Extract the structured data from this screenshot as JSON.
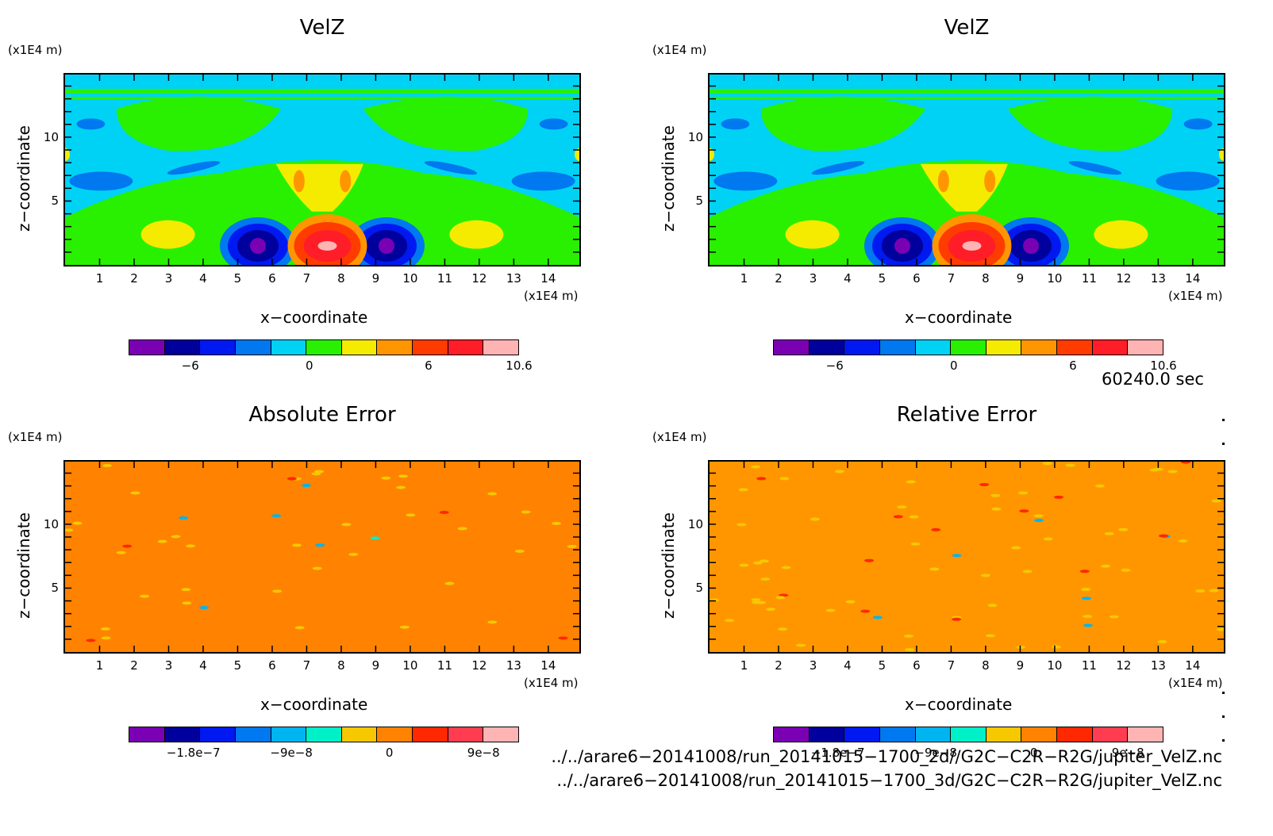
{
  "panels": [
    {
      "id": "velz-2d",
      "title": "VelZ",
      "y_unit": "(x1E4 m)",
      "x_unit": "(x1E4 m)",
      "xlabel": "x−coordinate",
      "ylabel": "z−coordinate",
      "x_ticks": [
        "1",
        "2",
        "3",
        "4",
        "5",
        "6",
        "7",
        "8",
        "9",
        "10",
        "11",
        "12",
        "13",
        "14"
      ],
      "y_ticks": [
        "10",
        "5"
      ],
      "colorbar_ticks": [
        "−6",
        "0",
        "6",
        "10.6"
      ]
    },
    {
      "id": "velz-3d",
      "title": "VelZ",
      "y_unit": "(x1E4 m)",
      "x_unit": "(x1E4 m)",
      "xlabel": "x−coordinate",
      "ylabel": "z−coordinate",
      "x_ticks": [
        "1",
        "2",
        "3",
        "4",
        "5",
        "6",
        "7",
        "8",
        "9",
        "10",
        "11",
        "12",
        "13",
        "14"
      ],
      "y_ticks": [
        "10",
        "5"
      ],
      "colorbar_ticks": [
        "−6",
        "0",
        "6",
        "10.6"
      ]
    },
    {
      "id": "abs-error",
      "title": "Absolute Error",
      "y_unit": "(x1E4 m)",
      "x_unit": "(x1E4 m)",
      "xlabel": "x−coordinate",
      "ylabel": "z−coordinate",
      "x_ticks": [
        "1",
        "2",
        "3",
        "4",
        "5",
        "6",
        "7",
        "8",
        "9",
        "10",
        "11",
        "12",
        "13",
        "14"
      ],
      "y_ticks": [
        "10",
        "5"
      ],
      "colorbar_ticks": [
        "−1.8e−7",
        "−9e−8",
        "0",
        "9e−8"
      ]
    },
    {
      "id": "rel-error",
      "title": "Relative Error",
      "y_unit": "(x1E4 m)",
      "x_unit": "(x1E4 m)",
      "xlabel": "x−coordinate",
      "ylabel": "z−coordinate",
      "x_ticks": [
        "1",
        "2",
        "3",
        "4",
        "5",
        "6",
        "7",
        "8",
        "9",
        "10",
        "11",
        "12",
        "13",
        "14"
      ],
      "y_ticks": [
        "10",
        "5"
      ],
      "colorbar_ticks": [
        "−1.8e−7",
        "−9e−8",
        "0",
        "9e−8"
      ]
    }
  ],
  "timestamp": "60240.0 sec",
  "file_paths": [
    "../../arare6−20141008/run_20141015−1700_2d//G2C−C2R−R2G/jupiter_VelZ.nc",
    "../../arare6−20141008/run_20141015−1700_3d/G2C−C2R−R2G/jupiter_VelZ.nc"
  ],
  "colors": {
    "velz_levels": [
      "#7a00b4",
      "#00009c",
      "#0019f0",
      "#0078f0",
      "#00d2f5",
      "#28f000",
      "#f5eb00",
      "#ff9600",
      "#ff3c00",
      "#ff1e28",
      "#ffb4b4"
    ],
    "error_levels": [
      "#7a00b4",
      "#00009c",
      "#0019f0",
      "#0078f0",
      "#00b4f0",
      "#00f0c8",
      "#f5c800",
      "#ff8200",
      "#ff2800",
      "#ff3c50",
      "#ffb4b4"
    ],
    "abs_field": "#ff8200",
    "rel_field": "#ff9600"
  },
  "chart_data": [
    {
      "type": "heatmap",
      "title": "VelZ",
      "xlabel": "x−coordinate",
      "ylabel": "z−coordinate",
      "x_unit": "(x1E4 m)",
      "y_unit": "(x1E4 m)",
      "xlim": [
        0,
        14.9
      ],
      "ylim": [
        0,
        14.9
      ],
      "colorbar_ticks": [
        -6,
        0,
        6,
        10.6
      ],
      "features": [
        {
          "kind": "max",
          "x": 7.7,
          "z": 1.5,
          "value": 10.6
        },
        {
          "kind": "min",
          "x": 5.6,
          "z": 1.5,
          "value": -7
        },
        {
          "kind": "min",
          "x": 9.6,
          "z": 1.5,
          "value": -7
        }
      ]
    },
    {
      "type": "heatmap",
      "title": "VelZ",
      "xlabel": "x−coordinate",
      "ylabel": "z−coordinate",
      "x_unit": "(x1E4 m)",
      "y_unit": "(x1E4 m)",
      "xlim": [
        0,
        14.9
      ],
      "ylim": [
        0,
        14.9
      ],
      "colorbar_ticks": [
        -6,
        0,
        6,
        10.6
      ]
    },
    {
      "type": "heatmap",
      "title": "Absolute Error",
      "xlabel": "x−coordinate",
      "ylabel": "z−coordinate",
      "x_unit": "(x1E4 m)",
      "y_unit": "(x1E4 m)",
      "xlim": [
        0,
        14.9
      ],
      "ylim": [
        0,
        14.9
      ],
      "colorbar_ticks": [
        -1.8e-07,
        -9e-08,
        0,
        9e-08
      ]
    },
    {
      "type": "heatmap",
      "title": "Relative Error",
      "xlabel": "x−coordinate",
      "ylabel": "z−coordinate",
      "x_unit": "(x1E4 m)",
      "y_unit": "(x1E4 m)",
      "xlim": [
        0,
        14.9
      ],
      "ylim": [
        0,
        14.9
      ],
      "colorbar_ticks": [
        -1.8e-07,
        -9e-08,
        0,
        9e-08
      ]
    }
  ]
}
